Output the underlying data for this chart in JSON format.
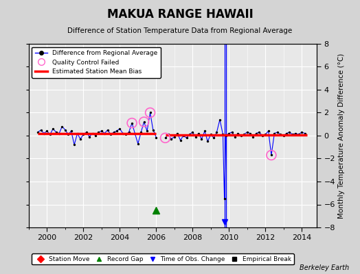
{
  "title": "MAKUA RANGE HAWAII",
  "subtitle": "Difference of Station Temperature Data from Regional Average",
  "ylabel": "Monthly Temperature Anomaly Difference (°C)",
  "credit": "Berkeley Earth",
  "xlim": [
    1999.0,
    2014.83
  ],
  "ylim": [
    -8,
    8
  ],
  "yticks": [
    -8,
    -6,
    -4,
    -2,
    0,
    2,
    4,
    6,
    8
  ],
  "xticks": [
    2000,
    2002,
    2004,
    2006,
    2008,
    2010,
    2012,
    2014
  ],
  "bg_color": "#d4d4d4",
  "plot_bg_color": "#e8e8e8",
  "grid_color": "#ffffff",
  "segment1_start": 1999.5,
  "segment1_end": 2006.0,
  "segment2_start": 2006.5,
  "segment2_end": 2014.3,
  "gap_marker_x": 2006.0,
  "gap_marker_y": -6.5,
  "obs_change_x": 2009.75,
  "obs_change_x2": 2009.83,
  "bias1": 0.15,
  "bias2": 0.05,
  "data_seg1": [
    [
      1999.5,
      0.3
    ],
    [
      1999.67,
      0.5
    ],
    [
      1999.83,
      0.2
    ],
    [
      2000.0,
      0.4
    ],
    [
      2000.17,
      0.1
    ],
    [
      2000.33,
      0.6
    ],
    [
      2000.5,
      0.3
    ],
    [
      2000.67,
      0.2
    ],
    [
      2000.83,
      0.8
    ],
    [
      2001.0,
      0.5
    ],
    [
      2001.17,
      0.1
    ],
    [
      2001.33,
      0.4
    ],
    [
      2001.5,
      -0.8
    ],
    [
      2001.67,
      0.2
    ],
    [
      2001.83,
      -0.3
    ],
    [
      2002.0,
      0.1
    ],
    [
      2002.17,
      0.3
    ],
    [
      2002.33,
      -0.1
    ],
    [
      2002.5,
      0.2
    ],
    [
      2002.67,
      0.0
    ],
    [
      2002.83,
      0.3
    ],
    [
      2003.0,
      0.4
    ],
    [
      2003.17,
      0.2
    ],
    [
      2003.33,
      0.5
    ],
    [
      2003.5,
      0.1
    ],
    [
      2003.67,
      0.3
    ],
    [
      2003.83,
      0.4
    ],
    [
      2004.0,
      0.6
    ],
    [
      2004.17,
      0.2
    ],
    [
      2004.33,
      0.1
    ],
    [
      2004.5,
      0.3
    ],
    [
      2004.67,
      1.1
    ],
    [
      2004.83,
      0.2
    ],
    [
      2005.0,
      -0.7
    ],
    [
      2005.17,
      0.3
    ],
    [
      2005.33,
      1.2
    ],
    [
      2005.5,
      0.4
    ],
    [
      2005.67,
      2.0
    ],
    [
      2005.83,
      0.5
    ],
    [
      2005.92,
      0.2
    ],
    [
      2006.0,
      -0.15
    ]
  ],
  "data_seg2": [
    [
      2006.5,
      -0.2
    ],
    [
      2006.67,
      0.1
    ],
    [
      2006.83,
      -0.3
    ],
    [
      2007.0,
      -0.1
    ],
    [
      2007.17,
      0.2
    ],
    [
      2007.33,
      -0.4
    ],
    [
      2007.5,
      0.0
    ],
    [
      2007.67,
      -0.2
    ],
    [
      2007.83,
      0.1
    ],
    [
      2008.0,
      0.3
    ],
    [
      2008.17,
      -0.1
    ],
    [
      2008.33,
      0.2
    ],
    [
      2008.5,
      -0.3
    ],
    [
      2008.67,
      0.4
    ],
    [
      2008.83,
      -0.5
    ],
    [
      2009.0,
      0.1
    ],
    [
      2009.17,
      -0.2
    ],
    [
      2009.33,
      0.3
    ],
    [
      2009.5,
      1.4
    ],
    [
      2009.67,
      0.1
    ],
    [
      2009.75,
      -5.5
    ],
    [
      2009.83,
      0.0
    ],
    [
      2010.0,
      0.2
    ],
    [
      2010.17,
      0.3
    ],
    [
      2010.33,
      -0.1
    ],
    [
      2010.5,
      0.2
    ],
    [
      2010.67,
      0.0
    ],
    [
      2010.83,
      0.1
    ],
    [
      2011.0,
      0.3
    ],
    [
      2011.17,
      0.2
    ],
    [
      2011.33,
      -0.1
    ],
    [
      2011.5,
      0.2
    ],
    [
      2011.67,
      0.3
    ],
    [
      2011.83,
      0.0
    ],
    [
      2012.0,
      0.1
    ],
    [
      2012.17,
      0.4
    ],
    [
      2012.33,
      -1.7
    ],
    [
      2012.5,
      0.2
    ],
    [
      2012.67,
      0.3
    ],
    [
      2012.83,
      0.1
    ],
    [
      2013.0,
      0.0
    ],
    [
      2013.17,
      0.2
    ],
    [
      2013.33,
      0.3
    ],
    [
      2013.5,
      0.1
    ],
    [
      2013.67,
      0.2
    ],
    [
      2013.83,
      0.1
    ],
    [
      2014.0,
      0.3
    ],
    [
      2014.17,
      0.2
    ]
  ],
  "qc_failed": [
    [
      2004.67,
      1.1
    ],
    [
      2005.33,
      1.2
    ],
    [
      2005.67,
      2.0
    ],
    [
      2006.5,
      -0.2
    ],
    [
      2012.33,
      -1.7
    ]
  ]
}
